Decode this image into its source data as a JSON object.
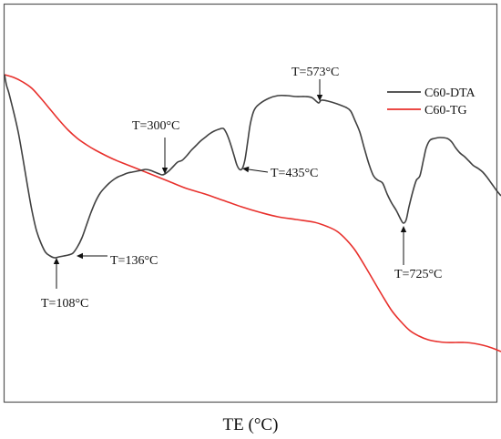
{
  "chart_data": {
    "type": "line",
    "title": "",
    "xlabel": "TE (°C)",
    "ylabel": "",
    "grid": false,
    "legend_placement": "top-right",
    "colors": {
      "dta": "#404040",
      "tg": "#e8302c",
      "frame": "#555555"
    },
    "series": [
      {
        "name": "C60-DTA",
        "color": "#404040",
        "points": [
          [
            0,
            77
          ],
          [
            2,
            88
          ],
          [
            5,
            98
          ],
          [
            10,
            118
          ],
          [
            15,
            140
          ],
          [
            20,
            168
          ],
          [
            25,
            198
          ],
          [
            30,
            226
          ],
          [
            35,
            248
          ],
          [
            40,
            262
          ],
          [
            45,
            272
          ],
          [
            50,
            276
          ],
          [
            55,
            278
          ],
          [
            60,
            277
          ],
          [
            65,
            276
          ],
          [
            70,
            275
          ],
          [
            75,
            273
          ],
          [
            80,
            266
          ],
          [
            85,
            256
          ],
          [
            90,
            242
          ],
          [
            95,
            228
          ],
          [
            100,
            216
          ],
          [
            105,
            207
          ],
          [
            110,
            201
          ],
          [
            115,
            196
          ],
          [
            120,
            192
          ],
          [
            125,
            189
          ],
          [
            130,
            187
          ],
          [
            135,
            185
          ],
          [
            140,
            184
          ],
          [
            145,
            183
          ],
          [
            150,
            182
          ],
          [
            155,
            181
          ],
          [
            160,
            182
          ],
          [
            165,
            184
          ],
          [
            170,
            186
          ],
          [
            173,
            187
          ],
          [
            176,
            186
          ],
          [
            180,
            183
          ],
          [
            185,
            178
          ],
          [
            190,
            173
          ],
          [
            195,
            171
          ],
          [
            200,
            166
          ],
          [
            205,
            160
          ],
          [
            210,
            155
          ],
          [
            215,
            150
          ],
          [
            220,
            146
          ],
          [
            225,
            142
          ],
          [
            230,
            139
          ],
          [
            235,
            137
          ],
          [
            240,
            136
          ],
          [
            243,
            140
          ],
          [
            246,
            147
          ],
          [
            249,
            156
          ],
          [
            252,
            166
          ],
          [
            255,
            176
          ],
          [
            258,
            181
          ],
          [
            261,
            180
          ],
          [
            264,
            170
          ],
          [
            267,
            150
          ],
          [
            270,
            130
          ],
          [
            274,
            116
          ],
          [
            280,
            109
          ],
          [
            290,
            103
          ],
          [
            300,
            100
          ],
          [
            310,
            100
          ],
          [
            320,
            101
          ],
          [
            330,
            101
          ],
          [
            337,
            102
          ],
          [
            342,
            106
          ],
          [
            345,
            108
          ],
          [
            348,
            105
          ],
          [
            355,
            106
          ],
          [
            365,
            109
          ],
          [
            375,
            113
          ],
          [
            380,
            117
          ],
          [
            385,
            128
          ],
          [
            390,
            140
          ],
          [
            395,
            158
          ],
          [
            400,
            175
          ],
          [
            405,
            188
          ],
          [
            410,
            193
          ],
          [
            415,
            196
          ],
          [
            420,
            208
          ],
          [
            425,
            218
          ],
          [
            430,
            226
          ],
          [
            435,
            236
          ],
          [
            438,
            240
          ],
          [
            441,
            236
          ],
          [
            444,
            222
          ],
          [
            448,
            206
          ],
          [
            452,
            193
          ],
          [
            456,
            188
          ],
          [
            460,
            170
          ],
          [
            463,
            157
          ],
          [
            467,
            149
          ],
          [
            472,
            147
          ],
          [
            478,
            146
          ],
          [
            486,
            147
          ],
          [
            491,
            151
          ],
          [
            495,
            157
          ],
          [
            500,
            163
          ],
          [
            505,
            167
          ],
          [
            510,
            172
          ],
          [
            515,
            177
          ],
          [
            520,
            180
          ],
          [
            525,
            184
          ],
          [
            530,
            190
          ],
          [
            535,
            197
          ],
          [
            540,
            204
          ],
          [
            545,
            210
          ]
        ]
      },
      {
        "name": "C60-TG",
        "color": "#e8302c",
        "points": [
          [
            0,
            77
          ],
          [
            10,
            80
          ],
          [
            20,
            85
          ],
          [
            30,
            92
          ],
          [
            40,
            103
          ],
          [
            50,
            115
          ],
          [
            60,
            127
          ],
          [
            70,
            138
          ],
          [
            80,
            147
          ],
          [
            90,
            154
          ],
          [
            100,
            160
          ],
          [
            120,
            170
          ],
          [
            140,
            178
          ],
          [
            160,
            186
          ],
          [
            180,
            194
          ],
          [
            200,
            202
          ],
          [
            220,
            208
          ],
          [
            240,
            215
          ],
          [
            260,
            222
          ],
          [
            280,
            228
          ],
          [
            300,
            233
          ],
          [
            320,
            236
          ],
          [
            340,
            239
          ],
          [
            355,
            244
          ],
          [
            365,
            249
          ],
          [
            375,
            258
          ],
          [
            385,
            270
          ],
          [
            395,
            286
          ],
          [
            405,
            303
          ],
          [
            415,
            320
          ],
          [
            425,
            336
          ],
          [
            435,
            348
          ],
          [
            445,
            358
          ],
          [
            455,
            364
          ],
          [
            465,
            368
          ],
          [
            475,
            370
          ],
          [
            485,
            371
          ],
          [
            495,
            371
          ],
          [
            505,
            371
          ],
          [
            515,
            372
          ],
          [
            525,
            374
          ],
          [
            535,
            377
          ],
          [
            545,
            381
          ]
        ]
      }
    ],
    "annotations": [
      {
        "label": "T=108°C",
        "tip": [
          57,
          278
        ],
        "tail": [
          57,
          312
        ],
        "text": [
          40,
          332
        ],
        "anchor": "start"
      },
      {
        "label": "T=136°C",
        "tip": [
          79,
          276
        ],
        "tail": [
          113,
          276
        ],
        "text": [
          116,
          285
        ],
        "anchor": "start"
      },
      {
        "label": "T=300°C",
        "tip": [
          176,
          186
        ],
        "tail": [
          176,
          146
        ],
        "text": [
          140,
          137
        ],
        "anchor": "start"
      },
      {
        "label": "T=435°C",
        "tip": [
          261,
          180
        ],
        "tail": [
          289,
          184
        ],
        "text": [
          292,
          189
        ],
        "anchor": "start"
      },
      {
        "label": "T=573°C",
        "tip": [
          346,
          106
        ],
        "tail": [
          346,
          82
        ],
        "text": [
          315,
          78
        ],
        "anchor": "start"
      },
      {
        "label": "T=725°C",
        "tip": [
          438,
          243
        ],
        "tail": [
          438,
          286
        ],
        "text": [
          428,
          300
        ],
        "anchor": "start"
      }
    ],
    "legend": [
      {
        "name": "C60-DTA",
        "color": "#404040"
      },
      {
        "name": "C60-TG",
        "color": "#e8302c"
      }
    ]
  }
}
